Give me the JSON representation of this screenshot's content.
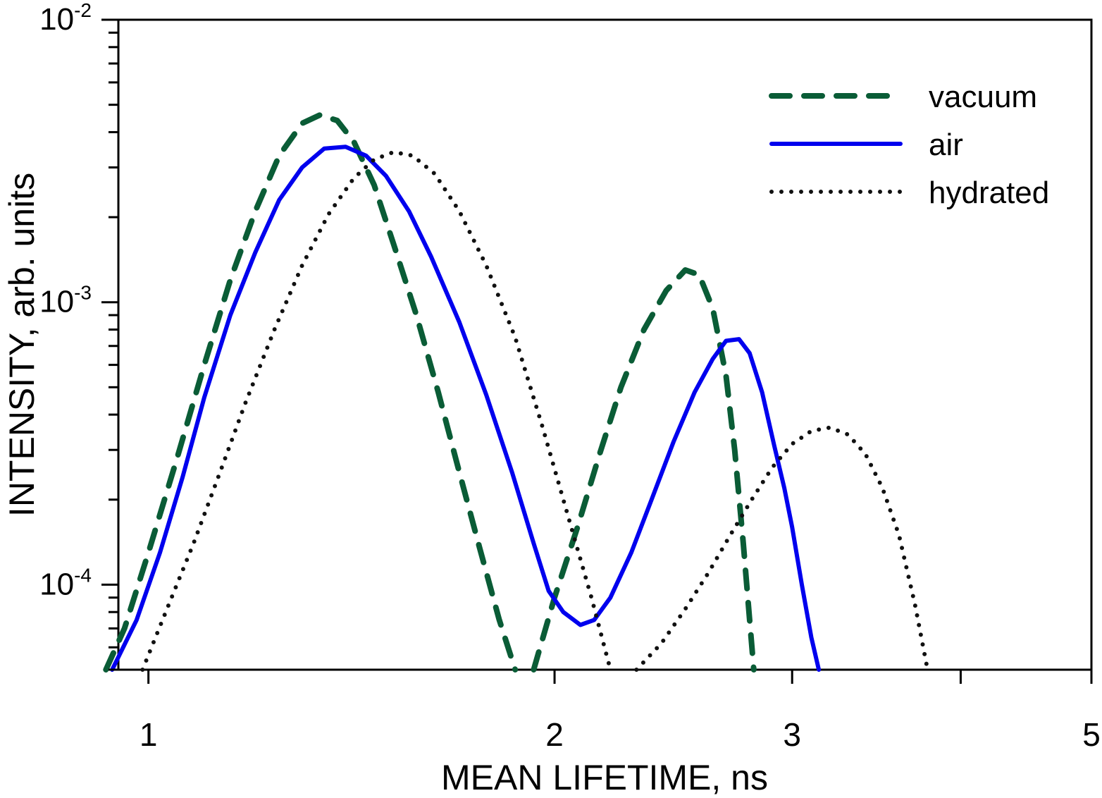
{
  "chart_data": {
    "type": "line",
    "xscale": "log",
    "yscale": "log",
    "xlabel": "MEAN LIFETIME, ns",
    "ylabel": "INTENSITY, arb. units",
    "xlim": [
      0.95,
      5
    ],
    "ylim": [
      5e-05,
      0.01
    ],
    "x_ticks": [
      {
        "value": 1,
        "label": "1"
      },
      {
        "value": 2,
        "label": "2"
      },
      {
        "value": 3,
        "label": "3"
      },
      {
        "value": 5,
        "label": "5"
      }
    ],
    "x_minor_ticks": [
      4
    ],
    "y_ticks": [
      {
        "value": 0.01,
        "base": "10",
        "exp": "-2"
      },
      {
        "value": 0.001,
        "base": "10",
        "exp": "-3"
      },
      {
        "value": 0.0001,
        "base": "10",
        "exp": "-4"
      }
    ],
    "legend_position": "top-right",
    "series": [
      {
        "name": "vacuum",
        "color": "#0a5c36",
        "style": "dashed",
        "points": [
          [
            0.93,
            5e-05
          ],
          [
            0.96,
            7e-05
          ],
          [
            1.0,
            0.00013
          ],
          [
            1.05,
            0.00028
          ],
          [
            1.1,
            0.0006
          ],
          [
            1.15,
            0.0012
          ],
          [
            1.2,
            0.0021
          ],
          [
            1.25,
            0.0033
          ],
          [
            1.3,
            0.0043
          ],
          [
            1.34,
            0.0046
          ],
          [
            1.38,
            0.0044
          ],
          [
            1.42,
            0.0037
          ],
          [
            1.47,
            0.0026
          ],
          [
            1.52,
            0.0016
          ],
          [
            1.58,
            0.0009
          ],
          [
            1.64,
            0.00048
          ],
          [
            1.7,
            0.00025
          ],
          [
            1.76,
            0.000135
          ],
          [
            1.82,
            7.5e-05
          ],
          [
            1.87,
            5e-05
          ]
        ]
      },
      {
        "name": "vacuum",
        "color": "#0a5c36",
        "style": "dashed",
        "points": [
          [
            1.93,
            5e-05
          ],
          [
            2.0,
            9e-05
          ],
          [
            2.08,
            0.00016
          ],
          [
            2.16,
            0.00029
          ],
          [
            2.24,
            0.0005
          ],
          [
            2.33,
            0.0008
          ],
          [
            2.42,
            0.0011
          ],
          [
            2.5,
            0.0013
          ],
          [
            2.56,
            0.00125
          ],
          [
            2.62,
            0.00095
          ],
          [
            2.68,
            0.00055
          ],
          [
            2.72,
            0.0003
          ],
          [
            2.76,
            0.00014
          ],
          [
            2.79,
            7.5e-05
          ],
          [
            2.81,
            5e-05
          ]
        ]
      },
      {
        "name": "air",
        "color": "#0000ee",
        "style": "solid",
        "points": [
          [
            0.94,
            5e-05
          ],
          [
            0.98,
            7.5e-05
          ],
          [
            1.02,
            0.00013
          ],
          [
            1.06,
            0.00024
          ],
          [
            1.1,
            0.00046
          ],
          [
            1.15,
            0.0009
          ],
          [
            1.2,
            0.0015
          ],
          [
            1.25,
            0.0023
          ],
          [
            1.3,
            0.003
          ],
          [
            1.35,
            0.0035
          ],
          [
            1.4,
            0.00355
          ],
          [
            1.45,
            0.0033
          ],
          [
            1.5,
            0.0028
          ],
          [
            1.56,
            0.0021
          ],
          [
            1.62,
            0.00145
          ],
          [
            1.7,
            0.00085
          ],
          [
            1.78,
            0.00047
          ],
          [
            1.86,
            0.00025
          ],
          [
            1.93,
            0.00014
          ],
          [
            1.98,
            9.5e-05
          ],
          [
            2.03,
            8e-05
          ],
          [
            2.09,
            7.2e-05
          ],
          [
            2.14,
            7.5e-05
          ],
          [
            2.2,
            9e-05
          ],
          [
            2.28,
            0.00013
          ],
          [
            2.36,
            0.0002
          ],
          [
            2.45,
            0.00032
          ],
          [
            2.54,
            0.00048
          ],
          [
            2.62,
            0.00063
          ],
          [
            2.68,
            0.00073
          ],
          [
            2.74,
            0.00074
          ],
          [
            2.79,
            0.00066
          ],
          [
            2.85,
            0.00048
          ],
          [
            2.91,
            0.00031
          ],
          [
            2.96,
            0.00022
          ],
          [
            3.0,
            0.00016
          ],
          [
            3.05,
            0.0001
          ],
          [
            3.1,
            6.5e-05
          ],
          [
            3.14,
            5e-05
          ]
        ]
      },
      {
        "name": "hydrated",
        "color": "#111111",
        "style": "dotted",
        "points": [
          [
            0.99,
            5e-05
          ],
          [
            1.03,
            8e-05
          ],
          [
            1.08,
            0.00014
          ],
          [
            1.13,
            0.00025
          ],
          [
            1.18,
            0.00044
          ],
          [
            1.24,
            0.0008
          ],
          [
            1.3,
            0.00135
          ],
          [
            1.36,
            0.00205
          ],
          [
            1.42,
            0.00275
          ],
          [
            1.47,
            0.0032
          ],
          [
            1.52,
            0.0034
          ],
          [
            1.57,
            0.0033
          ],
          [
            1.63,
            0.00285
          ],
          [
            1.7,
            0.0021
          ],
          [
            1.78,
            0.00135
          ],
          [
            1.87,
            0.00075
          ],
          [
            1.96,
            0.00036
          ],
          [
            2.05,
            0.00017
          ],
          [
            2.13,
            9e-05
          ],
          [
            2.2,
            5e-05
          ]
        ]
      },
      {
        "name": "hydrated",
        "color": "#111111",
        "style": "dotted",
        "points": [
          [
            2.3,
            5e-05
          ],
          [
            2.4,
            6.2e-05
          ],
          [
            2.5,
            8.2e-05
          ],
          [
            2.6,
            0.00011
          ],
          [
            2.7,
            0.00015
          ],
          [
            2.8,
            0.0002
          ],
          [
            2.9,
            0.00026
          ],
          [
            3.0,
            0.000315
          ],
          [
            3.1,
            0.00035
          ],
          [
            3.2,
            0.00036
          ],
          [
            3.3,
            0.00034
          ],
          [
            3.4,
            0.00029
          ],
          [
            3.5,
            0.00022
          ],
          [
            3.6,
            0.00015
          ],
          [
            3.7,
            8.5e-05
          ],
          [
            3.78,
            5e-05
          ]
        ]
      }
    ],
    "legend": [
      {
        "label": "vacuum",
        "color": "#0a5c36",
        "style": "dashed"
      },
      {
        "label": "air",
        "color": "#0000ee",
        "style": "solid"
      },
      {
        "label": "hydrated",
        "color": "#111111",
        "style": "dotted"
      }
    ]
  }
}
